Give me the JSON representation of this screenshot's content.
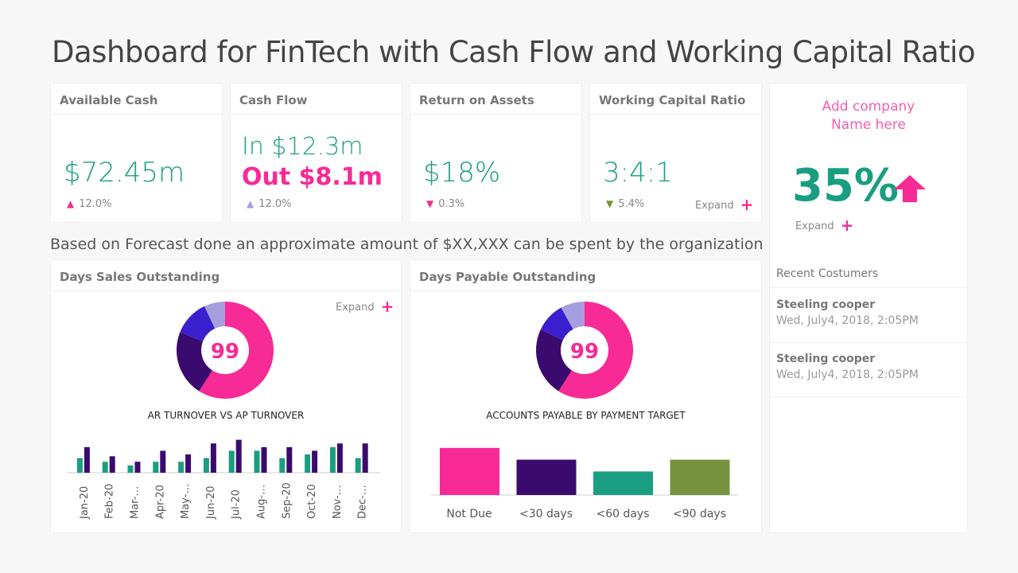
{
  "title": "Dashboard for FinTech with Cash Flow and Working Capital Ratio",
  "colors": {
    "teal": "#1a9e82",
    "pink": "#f72a96",
    "dark_purple": "#3b0a6e",
    "blue": "#3a1fcf",
    "lavender": "#a59fe0",
    "olive": "#76923c"
  },
  "kpis": [
    {
      "label": "Available Cash",
      "value": "$72.45m",
      "delta": "12.0%",
      "trend": "up",
      "trend_color": "#f72a96"
    },
    {
      "label": "Cash Flow",
      "value_in": "In $12.3m",
      "value_out": "Out $8.1m",
      "delta": "12.0%",
      "trend": "up",
      "trend_color": "#a59fe0"
    },
    {
      "label": "Return on Assets",
      "value": "$18%",
      "delta": "0.3%",
      "trend": "down",
      "trend_color": "#f72a96"
    },
    {
      "label": "Working Capital Ratio",
      "value": "3:4:1",
      "delta": "5.4%",
      "trend": "down",
      "trend_color": "#76923c",
      "expand": "Expand"
    }
  ],
  "side": {
    "company": "Add company",
    "company2": "Name here",
    "value": "35%",
    "trend": "up",
    "expand": "Expand",
    "recent_title": "Recent Costumers",
    "customers": [
      {
        "name": "Steeling cooper",
        "date": "Wed, July4, 2018, 2:05PM"
      },
      {
        "name": "Steeling cooper",
        "date": "Wed, July4, 2018, 2:05PM"
      }
    ]
  },
  "forecast": "Based on Forecast done an approximate amount of $XX,XXX can be spent by the organization",
  "dso": {
    "title": "Days Sales Outstanding",
    "expand": "Expand"
  },
  "dpo": {
    "title": "Days Payable Outstanding"
  },
  "chart_data": [
    {
      "type": "pie",
      "donut": true,
      "center_label": "99",
      "values": [
        59,
        22,
        12,
        7
      ],
      "colors": [
        "#f72a96",
        "#3b0a6e",
        "#3a1fcf",
        "#a59fe0"
      ]
    },
    {
      "type": "bar",
      "title": "AR TURNOVER VS AP TURNOVER",
      "categories": [
        "Jan-20",
        "Feb-20",
        "Mar-…",
        "Apr-20",
        "May-…",
        "Jun-20",
        "Jul-20",
        "Aug-…",
        "Sep-20",
        "Oct-20",
        "Nov-…",
        "Dec-…"
      ],
      "series": [
        {
          "values": [
            4,
            3,
            2,
            3,
            3,
            4,
            6,
            6,
            4,
            5,
            7,
            4
          ],
          "color": "#1a9e82"
        },
        {
          "values": [
            7,
            4.5,
            3,
            6,
            5,
            8,
            9,
            7,
            7,
            6,
            8,
            8
          ],
          "color": "#3b0a6e"
        }
      ],
      "grid": false
    },
    {
      "type": "pie",
      "donut": true,
      "center_label": "99",
      "values": [
        59,
        23,
        10,
        8
      ],
      "colors": [
        "#f72a96",
        "#3b0a6e",
        "#3a1fcf",
        "#a59fe0"
      ]
    },
    {
      "type": "bar",
      "title": "ACCOUNTS PAYABLE BY PAYMENT TARGET",
      "categories": [
        "Not Due",
        "<30 days",
        "<60  days",
        "<90 days"
      ],
      "values": [
        4,
        3,
        2,
        3
      ],
      "colors": [
        "#f72a96",
        "#3b0a6e",
        "#1a9e82",
        "#76923c"
      ],
      "grid": false
    }
  ]
}
